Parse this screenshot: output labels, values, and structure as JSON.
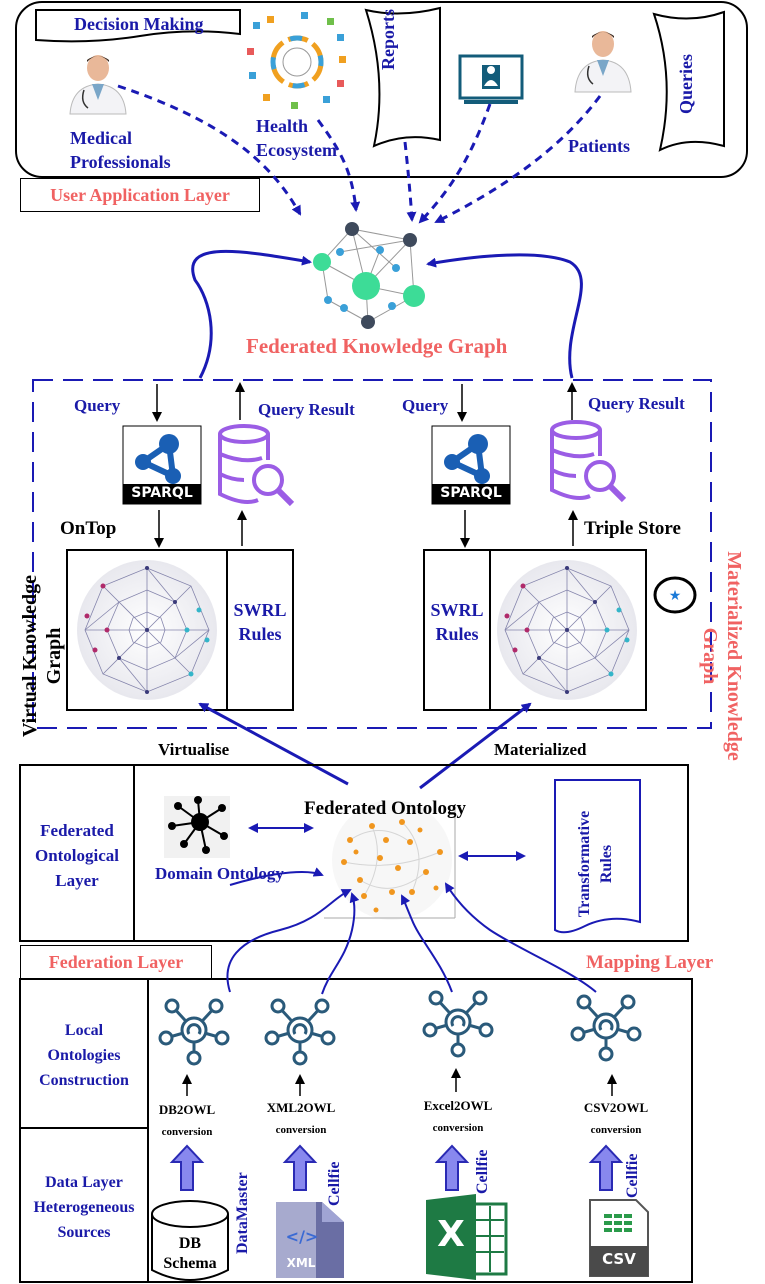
{
  "user_layer": {
    "decision_making": "Decision Making",
    "medical_professionals": [
      "Medical",
      "Professionals"
    ],
    "health_ecosystem": [
      "Health",
      "Ecosystem"
    ],
    "reports": "Reports",
    "patients": "Patients",
    "queries": "Queries",
    "layer_label": "User Application Layer"
  },
  "federated_kg": {
    "title": "Federated Knowledge Graph"
  },
  "virtual_kg": {
    "label": [
      "Virtual Knowledge",
      "Graph"
    ],
    "query": "Query",
    "query_result": "Query Result",
    "sparql": "SPARQL",
    "engine": "OnTop",
    "swrl": [
      "SWRL",
      "Rules"
    ],
    "action": "Virtualise"
  },
  "materialized_kg": {
    "label": [
      "Materialized Knowledge",
      "Graph"
    ],
    "query": "Query",
    "query_result": "Query Result",
    "sparql": "SPARQL",
    "store": "Triple Store",
    "swrl": [
      "SWRL",
      "Rules"
    ],
    "action": "Materialized"
  },
  "ontological_layer": {
    "label": [
      "Federated",
      "Ontological",
      "Layer"
    ],
    "federated_ontology": "Federated Ontology",
    "domain_ontology": "Domain Ontology",
    "transformative_rules": [
      "Transformative",
      "Rules"
    ]
  },
  "federation_layer": {
    "label": "Federation Layer",
    "mapping_layer": "Mapping Layer"
  },
  "local_ontologies": {
    "label": [
      "Local",
      "Ontologies",
      "Construction"
    ],
    "conversions": [
      {
        "tool": "DB2OWL",
        "word": "conversion"
      },
      {
        "tool": "XML2OWL",
        "word": "conversion"
      },
      {
        "tool": "Excel2OWL",
        "word": "conversion"
      },
      {
        "tool": "CSV2OWL",
        "word": "conversion"
      }
    ]
  },
  "data_layer": {
    "label": [
      "Data Layer",
      "Heterogeneous",
      "Sources"
    ],
    "db": [
      "DB",
      "Schema"
    ],
    "datamaster": "DataMaster",
    "cellfie": "Cellfie",
    "xml": "XML",
    "csv": "CSV",
    "excel": "X"
  }
}
